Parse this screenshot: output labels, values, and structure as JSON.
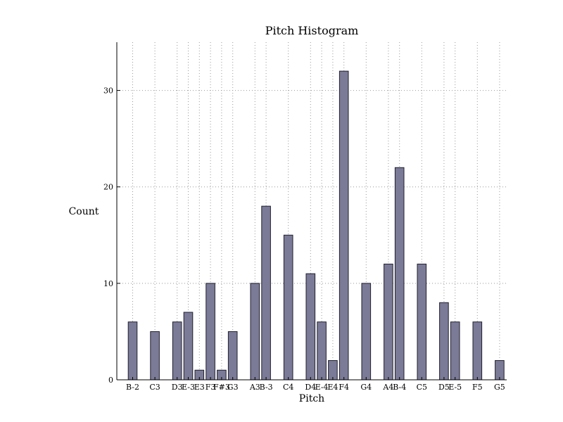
{
  "chart_data": {
    "type": "bar",
    "title": "Pitch Histogram",
    "xlabel": "Pitch",
    "ylabel": "Count",
    "ylim": [
      0,
      35
    ],
    "yticks": [
      0,
      10,
      20,
      30
    ],
    "grid": true,
    "bar_color": "#7b7b98",
    "bar_edge_color": "#1f1f2e",
    "bars": [
      {
        "label": "B-2",
        "pos": 0,
        "value": 6
      },
      {
        "label": "C3",
        "pos": 2,
        "value": 5
      },
      {
        "label": "D3",
        "pos": 4,
        "value": 6
      },
      {
        "label": "E-3",
        "pos": 5,
        "value": 7
      },
      {
        "label": "E3",
        "pos": 6,
        "value": 1
      },
      {
        "label": "F3",
        "pos": 7,
        "value": 10
      },
      {
        "label": "F#3",
        "pos": 8,
        "value": 1
      },
      {
        "label": "G3",
        "pos": 9,
        "value": 5
      },
      {
        "label": "A3",
        "pos": 11,
        "value": 10
      },
      {
        "label": "B-3",
        "pos": 12,
        "value": 18
      },
      {
        "label": "C4",
        "pos": 14,
        "value": 15
      },
      {
        "label": "D4",
        "pos": 16,
        "value": 11
      },
      {
        "label": "E-4",
        "pos": 17,
        "value": 6
      },
      {
        "label": "E4",
        "pos": 18,
        "value": 2
      },
      {
        "label": "F4",
        "pos": 19,
        "value": 32
      },
      {
        "label": "G4",
        "pos": 21,
        "value": 10
      },
      {
        "label": "A4",
        "pos": 23,
        "value": 12
      },
      {
        "label": "B-4",
        "pos": 24,
        "value": 22
      },
      {
        "label": "C5",
        "pos": 26,
        "value": 12
      },
      {
        "label": "D5",
        "pos": 28,
        "value": 8
      },
      {
        "label": "E-5",
        "pos": 29,
        "value": 6
      },
      {
        "label": "F5",
        "pos": 31,
        "value": 6
      },
      {
        "label": "G5",
        "pos": 33,
        "value": 2
      }
    ]
  }
}
